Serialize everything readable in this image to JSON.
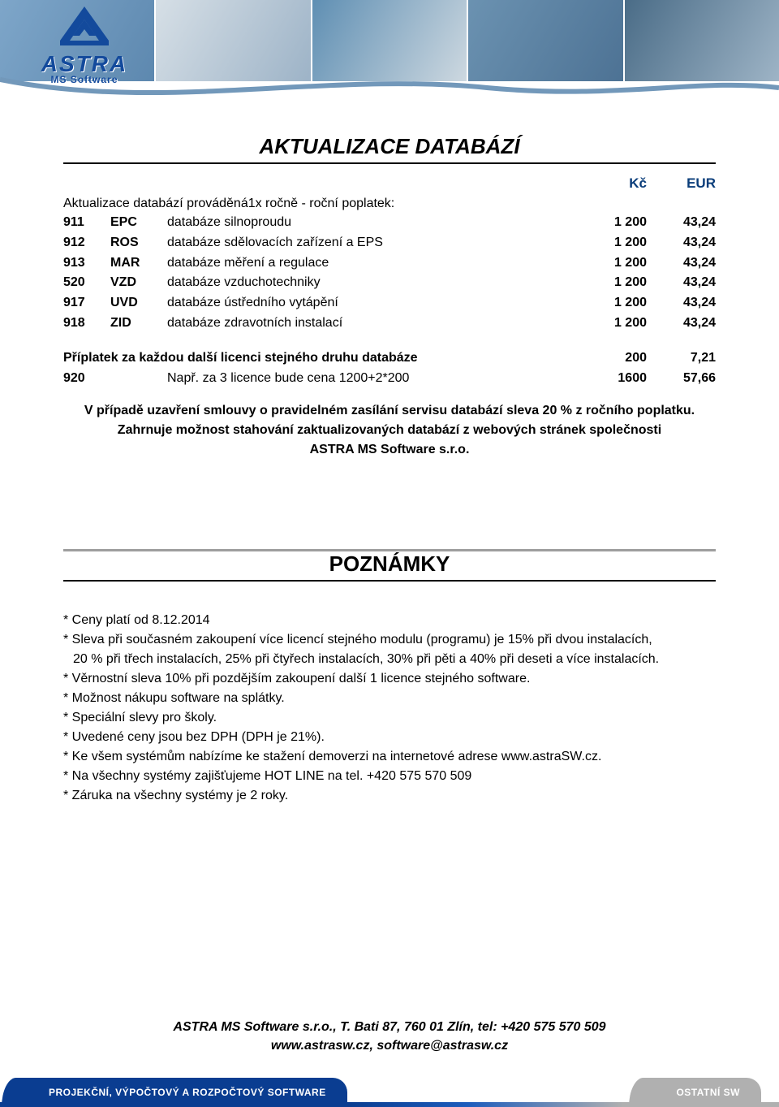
{
  "logo": {
    "primary_hex": "#134a9c",
    "text1": "ASTRA",
    "text2": "MS Software"
  },
  "header_images_tint": [
    "#7ea6c9",
    "#d6dfe6",
    "#5f8fb3",
    "#6b92b1",
    "#4a6c87"
  ],
  "section1": {
    "title": "AKTUALIZACE DATABÁZÍ",
    "currency_kc": "Kč",
    "currency_eur": "EUR",
    "intro": "Aktualizace databází prováděná1x ročně - roční poplatek:",
    "rows": [
      {
        "code": "911",
        "abbr": "EPC",
        "desc": "databáze silnoproudu",
        "kc": "1 200",
        "eur": "43,24"
      },
      {
        "code": "912",
        "abbr": "ROS",
        "desc": "databáze sdělovacích zařízení a EPS",
        "kc": "1 200",
        "eur": "43,24"
      },
      {
        "code": "913",
        "abbr": "MAR",
        "desc": "databáze měření a regulace",
        "kc": "1 200",
        "eur": "43,24"
      },
      {
        "code": "520",
        "abbr": "VZD",
        "desc": "databáze vzduchotechniky",
        "kc": "1 200",
        "eur": "43,24"
      },
      {
        "code": "917",
        "abbr": "UVD",
        "desc": "databáze ústředního vytápění",
        "kc": "1 200",
        "eur": "43,24"
      },
      {
        "code": "918",
        "abbr": "ZID",
        "desc": "databáze zdravotních instalací",
        "kc": "1 200",
        "eur": "43,24"
      }
    ],
    "surcharge": {
      "label": "Příplatek za každou další licenci stejného druhu databáze",
      "kc": "200",
      "eur": "7,21"
    },
    "example": {
      "code": "920",
      "abbr": "",
      "desc": "Např. za 3 licence bude cena 1200+2*200",
      "kc": "1600",
      "eur": "57,66"
    },
    "case_lines": [
      "V případě uzavření smlouvy o pravidelném zasílání servisu databází sleva 20 % z ročního poplatku.",
      "Zahrnuje možnost stahování zaktualizovaných databází z webových stránek společnosti",
      "ASTRA MS Software s.r.o."
    ]
  },
  "section2": {
    "title": "POZNÁMKY",
    "notes": [
      "* Ceny platí od  8.12.2014",
      "* Sleva při současném zakoupení  více licencí stejného modulu (programu) je 15% při dvou instalacích,",
      "  20 % při třech instalacích, 25% při čtyřech instalacích,  30% při pěti a 40% při deseti a více instalacích.",
      "* Věrnostní sleva 10% při pozdějším zakoupení další 1 licence stejného software.",
      "* Možnost nákupu software na splátky.",
      "* Speciální slevy pro školy.",
      "* Uvedené ceny jsou bez DPH (DPH je 21%).",
      "* Ke všem systémům nabízíme ke stažení demoverzi na internetové adrese www.astraSW.cz.",
      "* Na všechny systémy zajišťujeme HOT LINE na tel. +420 575 570 509",
      "* Záruka na všechny systémy je 2 roky."
    ]
  },
  "footer": {
    "line1": "ASTRA MS Software s.r.o., T. Bati 87, 760 01 Zlín, tel: +420 575 570 509",
    "line2": "www.astrasw.cz,      software@astrasw.cz"
  },
  "bottombar": {
    "tab1": "PROJEKČNÍ, VÝPOČTOVÝ A ROZPOČTOVÝ SOFTWARE",
    "tab2": "",
    "tab3": "OSTATNÍ SW"
  }
}
